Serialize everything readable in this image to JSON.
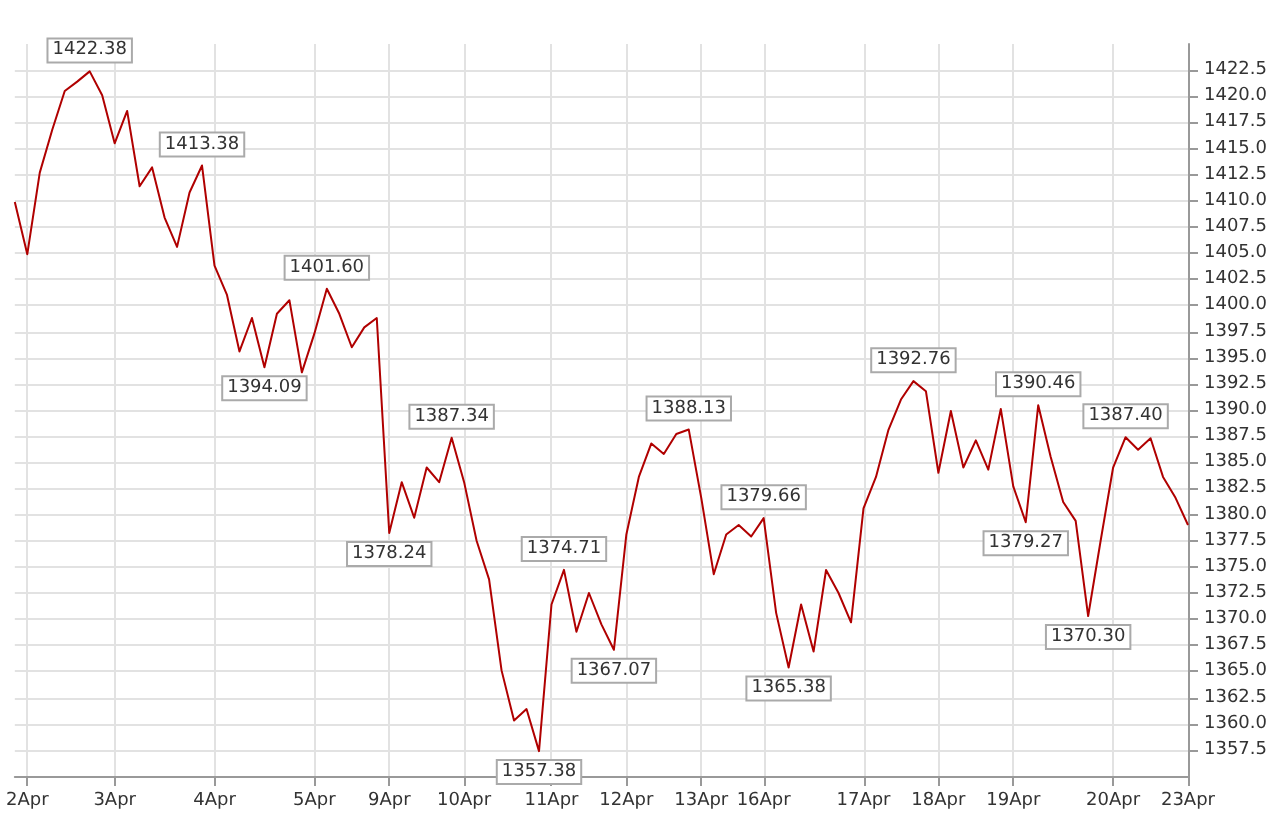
{
  "chart_data": {
    "type": "line",
    "line_style": "solid",
    "marker": "none",
    "grid": true,
    "categories": [
      null,
      "2Apr",
      null,
      null,
      null,
      null,
      null,
      null,
      "3Apr",
      null,
      null,
      null,
      null,
      null,
      null,
      null,
      "4Apr",
      null,
      null,
      null,
      null,
      null,
      null,
      null,
      "5Apr",
      null,
      null,
      null,
      null,
      null,
      "9Apr",
      null,
      null,
      null,
      null,
      null,
      "10Apr",
      null,
      null,
      null,
      null,
      null,
      null,
      "11Apr",
      null,
      null,
      null,
      null,
      null,
      "12Apr",
      null,
      null,
      null,
      null,
      null,
      "13Apr",
      null,
      null,
      null,
      null,
      "16Apr",
      null,
      null,
      null,
      null,
      null,
      null,
      null,
      "17Apr",
      null,
      null,
      null,
      null,
      null,
      "18Apr",
      null,
      null,
      null,
      null,
      null,
      "19Apr",
      null,
      null,
      null,
      null,
      null,
      null,
      null,
      "20Apr",
      null,
      null,
      null,
      null,
      null,
      "23Apr"
    ],
    "series": [
      {
        "color": "#b00000",
        "values": [
          1409.9,
          1404.9,
          1412.7,
          1416.8,
          1420.5,
          1421.4,
          1422.38,
          1420.1,
          1415.5,
          1418.6,
          1411.4,
          1413.2,
          1408.4,
          1405.6,
          1410.8,
          1413.38,
          1403.8,
          1401.0,
          1395.6,
          1398.8,
          1394.09,
          1399.2,
          1400.5,
          1393.6,
          1397.3,
          1401.6,
          1399.2,
          1396.0,
          1397.9,
          1398.8,
          1378.24,
          1383.1,
          1379.7,
          1384.5,
          1383.1,
          1387.34,
          1383.1,
          1377.5,
          1373.8,
          1365.1,
          1360.3,
          1361.4,
          1357.38,
          1371.4,
          1374.71,
          1368.8,
          1372.5,
          1369.5,
          1367.07,
          1378.1,
          1383.6,
          1386.8,
          1385.8,
          1387.7,
          1388.13,
          1381.6,
          1374.3,
          1378.1,
          1379.0,
          1377.9,
          1379.66,
          1370.6,
          1365.38,
          1371.4,
          1366.9,
          1374.7,
          1372.5,
          1369.7,
          1380.6,
          1383.6,
          1388.1,
          1391.0,
          1392.76,
          1391.8,
          1384.0,
          1389.9,
          1384.5,
          1387.1,
          1384.3,
          1390.1,
          1382.7,
          1379.27,
          1390.46,
          1385.5,
          1381.2,
          1379.4,
          1370.3,
          1377.5,
          1384.5,
          1387.4,
          1386.2,
          1387.3,
          1383.6,
          1381.6,
          1379.0
        ]
      }
    ],
    "ylim": [
      1355,
      1425
    ],
    "yticks": [
      1357.5,
      {
        "value": 1360,
        "label": "1360.0"
      },
      1362.5,
      {
        "value": 1365,
        "label": "1365.0"
      },
      1367.5,
      {
        "value": 1370,
        "label": "1370.0"
      },
      1372.5,
      {
        "value": 1375,
        "label": "1375.0"
      },
      1377.5,
      {
        "value": 1380,
        "label": "1380.0"
      },
      1382.5,
      {
        "value": 1385,
        "label": "1385.0"
      },
      1387.5,
      {
        "value": 1390,
        "label": "1390.0"
      },
      1392.5,
      {
        "value": 1395,
        "label": "1395.0"
      },
      1397.5,
      {
        "value": 1400,
        "label": "1400.0"
      },
      1402.5,
      {
        "value": 1405,
        "label": "1405.0"
      },
      1407.5,
      {
        "value": 1410,
        "label": "1410.0"
      },
      1412.5,
      {
        "value": 1415,
        "label": "1415.0"
      },
      1417.5,
      {
        "value": 1420,
        "label": "1420.0"
      },
      1422.5
    ],
    "annotations": [
      {
        "text": "1422.38",
        "y": 1422.38
      },
      {
        "text": "1413.38",
        "y": 1413.38
      },
      {
        "text": "1394.09",
        "y": 1394.09
      },
      {
        "text": "1401.60",
        "y": 1401.6
      },
      {
        "text": "1378.24",
        "y": 1378.24
      },
      {
        "text": "1387.34",
        "y": 1387.34
      },
      {
        "text": "1357.38",
        "y": 1357.38
      },
      {
        "text": "1374.71",
        "y": 1374.71
      },
      {
        "text": "1367.07",
        "y": 1367.07
      },
      {
        "text": "1388.13",
        "y": 1388.13
      },
      {
        "text": "1379.66",
        "y": 1379.66
      },
      {
        "text": "1365.38",
        "y": 1365.38
      },
      {
        "text": "1392.76",
        "y": 1392.76
      },
      {
        "text": "1379.27",
        "y": 1379.27
      },
      {
        "text": "1390.46",
        "y": 1390.46
      },
      {
        "text": "1370.30",
        "y": 1370.3
      },
      {
        "text": "1387.40",
        "y": 1387.4
      }
    ]
  }
}
